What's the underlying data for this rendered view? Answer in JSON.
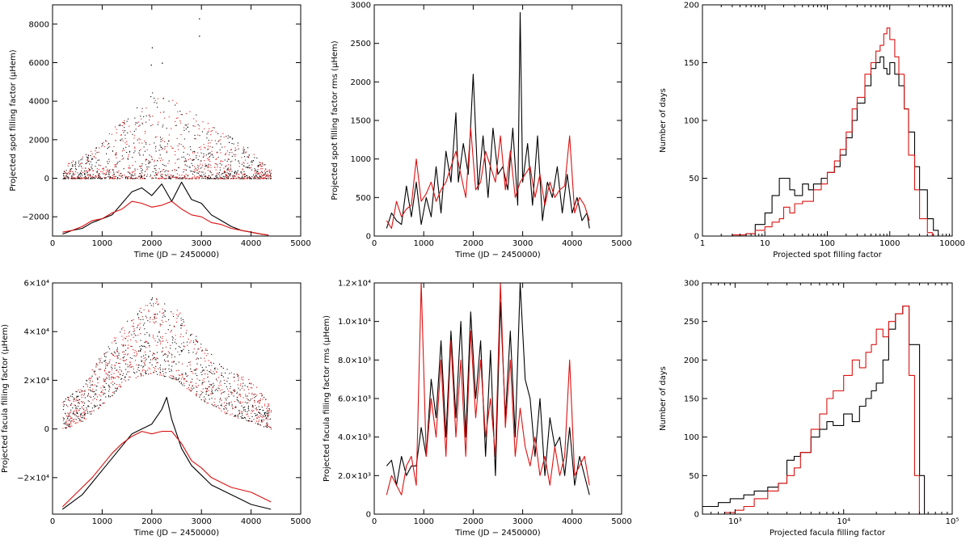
{
  "colors": {
    "series_a": "#000000",
    "series_b": "#dd1111",
    "axis": "#000000"
  },
  "chart_data": [
    {
      "id": "p1",
      "type": "scatter+line",
      "xlabel": "Time (JD − 2450000)",
      "ylabel": "Projected spot filling factor (μHem)",
      "xlim": [
        0,
        5000
      ],
      "ylim": [
        -3000,
        9000
      ],
      "xticks": [
        "0",
        "1000",
        "2000",
        "3000",
        "4000",
        "5000"
      ],
      "yticks": [
        "−2000",
        "0",
        "2000",
        "4000",
        "6000",
        "8000"
      ],
      "scatter_range": [
        200,
        4400
      ],
      "scatter_envelope": {
        "x": [
          200,
          600,
          1000,
          1500,
          2000,
          2500,
          3000,
          3500,
          4000,
          4400
        ],
        "y": [
          700,
          1200,
          2000,
          3400,
          4500,
          4000,
          3200,
          2300,
          1500,
          500
        ]
      },
      "series": [
        {
          "color": "black",
          "x": [
            200,
            400,
            600,
            800,
            1000,
            1200,
            1400,
            1600,
            1800,
            2000,
            2200,
            2400,
            2600,
            2800,
            3000,
            3200,
            3400,
            3600,
            3800,
            4000,
            4200,
            4350
          ],
          "y": [
            -2900,
            -2700,
            -2600,
            -2300,
            -2100,
            -1900,
            -1300,
            -700,
            -500,
            -900,
            -300,
            -1200,
            -200,
            -1100,
            -1300,
            -1900,
            -2200,
            -2500,
            -2700,
            -2800,
            -2900,
            -2950
          ]
        },
        {
          "color": "red",
          "x": [
            200,
            400,
            600,
            800,
            1000,
            1200,
            1400,
            1600,
            1800,
            2000,
            2200,
            2400,
            2600,
            2800,
            3000,
            3200,
            3400,
            3600,
            3800,
            4000,
            4200,
            4350
          ],
          "y": [
            -2800,
            -2700,
            -2500,
            -2200,
            -2100,
            -1800,
            -1600,
            -1200,
            -1300,
            -1500,
            -1400,
            -1200,
            -1600,
            -1900,
            -2000,
            -2300,
            -2400,
            -2600,
            -2700,
            -2800,
            -2900,
            -2950
          ]
        }
      ]
    },
    {
      "id": "p2",
      "type": "line",
      "xlabel": "Time (JD − 2450000)",
      "ylabel": "Projected spot filling factor rms (μHem)",
      "xlim": [
        0,
        5000
      ],
      "ylim": [
        0,
        3000
      ],
      "xticks": [
        "0",
        "1000",
        "2000",
        "3000",
        "4000",
        "5000"
      ],
      "yticks": [
        "0",
        "500",
        "1000",
        "1500",
        "2000",
        "2500",
        "3000"
      ],
      "series": [
        {
          "color": "black",
          "x": [
            250,
            350,
            450,
            550,
            650,
            750,
            850,
            950,
            1050,
            1150,
            1250,
            1350,
            1450,
            1550,
            1650,
            1700,
            1800,
            1900,
            2000,
            2100,
            2200,
            2300,
            2400,
            2500,
            2600,
            2700,
            2800,
            2900,
            2950,
            3000,
            3100,
            3200,
            3300,
            3400,
            3500,
            3600,
            3700,
            3800,
            3900,
            4000,
            4100,
            4200,
            4300,
            4350
          ],
          "y": [
            100,
            300,
            200,
            150,
            650,
            250,
            700,
            150,
            500,
            250,
            900,
            300,
            1100,
            700,
            1600,
            700,
            1200,
            800,
            2100,
            600,
            1300,
            500,
            1400,
            800,
            900,
            600,
            1400,
            400,
            2900,
            700,
            1200,
            400,
            1300,
            200,
            700,
            500,
            900,
            300,
            800,
            300,
            500,
            200,
            300,
            100
          ]
        },
        {
          "color": "red",
          "x": [
            250,
            350,
            450,
            550,
            650,
            750,
            850,
            950,
            1050,
            1150,
            1250,
            1350,
            1450,
            1550,
            1650,
            1750,
            1850,
            1950,
            2050,
            2150,
            2250,
            2350,
            2450,
            2550,
            2650,
            2750,
            2850,
            2950,
            3050,
            3150,
            3250,
            3350,
            3450,
            3550,
            3650,
            3750,
            3850,
            3950,
            4050,
            4150,
            4250,
            4350
          ],
          "y": [
            200,
            100,
            450,
            250,
            350,
            400,
            1000,
            450,
            550,
            700,
            450,
            600,
            700,
            900,
            1100,
            800,
            500,
            1400,
            600,
            700,
            1100,
            900,
            700,
            1300,
            600,
            1100,
            500,
            700,
            800,
            900,
            500,
            800,
            400,
            700,
            500,
            600,
            650,
            1300,
            300,
            500,
            400,
            200
          ]
        }
      ]
    },
    {
      "id": "p3",
      "type": "histogram-step",
      "xlabel": "Projected spot filling factor",
      "ylabel": "Number of days",
      "xscale": "log",
      "xlim": [
        1,
        10000
      ],
      "ylim": [
        0,
        200
      ],
      "xticks": [
        "1",
        "10",
        "100",
        "1000",
        "10000"
      ],
      "yticks": [
        "0",
        "50",
        "100",
        "150",
        "200"
      ],
      "series": [
        {
          "color": "black",
          "x": [
            5,
            7,
            10,
            13,
            17,
            20,
            25,
            30,
            40,
            50,
            60,
            80,
            100,
            130,
            160,
            200,
            250,
            300,
            400,
            500,
            600,
            700,
            800,
            900,
            1000,
            1200,
            1400,
            1700,
            2000,
            2500,
            3000,
            4000,
            5000
          ],
          "y": [
            2,
            10,
            20,
            35,
            50,
            50,
            40,
            35,
            45,
            40,
            45,
            50,
            55,
            60,
            70,
            85,
            100,
            115,
            130,
            145,
            150,
            155,
            145,
            140,
            150,
            140,
            130,
            110,
            90,
            60,
            40,
            15,
            5
          ]
        },
        {
          "color": "red",
          "x": [
            3,
            5,
            7,
            10,
            13,
            17,
            20,
            25,
            30,
            40,
            50,
            60,
            80,
            100,
            130,
            160,
            200,
            250,
            300,
            400,
            500,
            600,
            700,
            800,
            900,
            1000,
            1200,
            1400,
            1700,
            2000,
            2500,
            3000,
            4000
          ],
          "y": [
            1,
            2,
            5,
            8,
            12,
            15,
            25,
            20,
            28,
            30,
            30,
            40,
            45,
            55,
            65,
            75,
            90,
            110,
            120,
            140,
            150,
            160,
            165,
            175,
            180,
            170,
            155,
            140,
            110,
            70,
            40,
            15,
            3
          ]
        }
      ]
    },
    {
      "id": "p4",
      "type": "scatter+line",
      "xlabel": "Time (JD − 2450000)",
      "ylabel": "Projected facula filling factor (μHem)",
      "xlim": [
        0,
        5000
      ],
      "ylim": [
        -35000,
        60000
      ],
      "xticks": [
        "0",
        "1000",
        "2000",
        "3000",
        "4000",
        "5000"
      ],
      "yticks": [
        "−2×10⁴",
        "0",
        "2×10⁴",
        "4×10⁴",
        "6×10⁴"
      ],
      "scatter_range": [
        200,
        4400
      ],
      "scatter_envelope": {
        "x": [
          200,
          600,
          1000,
          1500,
          2000,
          2500,
          3000,
          3500,
          4000,
          4400
        ],
        "y": [
          12000,
          18000,
          32000,
          45000,
          55000,
          50000,
          35000,
          25000,
          20000,
          10000
        ]
      },
      "scatter_floor": {
        "x": [
          200,
          600,
          1000,
          1500,
          2000,
          2500,
          3000,
          3500,
          4000,
          4400
        ],
        "y": [
          0,
          3000,
          10000,
          20000,
          23000,
          20000,
          12000,
          6000,
          3000,
          0
        ]
      },
      "series": [
        {
          "color": "black",
          "x": [
            200,
            400,
            600,
            800,
            1000,
            1200,
            1400,
            1600,
            1800,
            2000,
            2200,
            2300,
            2400,
            2600,
            2800,
            3000,
            3200,
            3400,
            3600,
            3800,
            4000,
            4200,
            4400
          ],
          "y": [
            -33000,
            -30000,
            -27000,
            -22000,
            -17000,
            -12000,
            -7000,
            -2000,
            0,
            2000,
            8000,
            13000,
            4000,
            -8000,
            -15000,
            -19000,
            -23000,
            -25000,
            -27000,
            -29000,
            -31000,
            -32000,
            -33000
          ]
        },
        {
          "color": "red",
          "x": [
            200,
            400,
            600,
            800,
            1000,
            1200,
            1400,
            1600,
            1800,
            2000,
            2200,
            2400,
            2600,
            2800,
            3000,
            3200,
            3400,
            3600,
            3800,
            4000,
            4200,
            4400
          ],
          "y": [
            -32000,
            -28000,
            -24000,
            -20000,
            -15000,
            -10000,
            -6000,
            -3000,
            -1000,
            -2000,
            -1000,
            -1000,
            -6000,
            -13000,
            -16000,
            -20000,
            -22000,
            -24000,
            -25000,
            -26000,
            -28000,
            -30000
          ]
        }
      ]
    },
    {
      "id": "p5",
      "type": "line",
      "xlabel": "Time (JD − 2450000)",
      "ylabel": "Projected facula filling factor rms (μHem)",
      "xlim": [
        0,
        5000
      ],
      "ylim": [
        0,
        12000
      ],
      "xticks": [
        "0",
        "1000",
        "2000",
        "3000",
        "4000",
        "5000"
      ],
      "yticks": [
        "0",
        "2.0×10³",
        "4.0×10³",
        "6.0×10³",
        "8.0×10³",
        "1.0×10⁴",
        "1.2×10⁴"
      ],
      "series": [
        {
          "color": "black",
          "x": [
            250,
            350,
            450,
            550,
            650,
            750,
            850,
            950,
            1050,
            1150,
            1250,
            1350,
            1450,
            1550,
            1650,
            1750,
            1850,
            1950,
            2050,
            2150,
            2250,
            2350,
            2450,
            2550,
            2650,
            2750,
            2850,
            2950,
            3050,
            3150,
            3250,
            3350,
            3450,
            3550,
            3650,
            3750,
            3850,
            3950,
            4050,
            4150,
            4250,
            4350
          ],
          "y": [
            2500,
            2800,
            1500,
            3000,
            2000,
            2500,
            2500,
            4500,
            3000,
            7000,
            5000,
            9000,
            4000,
            9500,
            5000,
            10000,
            4000,
            10500,
            6000,
            9000,
            3000,
            8500,
            2000,
            11000,
            5000,
            9500,
            4000,
            12000,
            7000,
            6000,
            3000,
            6000,
            2000,
            5000,
            3500,
            4000,
            2000,
            4500,
            1500,
            3000,
            2000,
            1000
          ]
        },
        {
          "color": "red",
          "x": [
            250,
            350,
            450,
            550,
            650,
            750,
            850,
            950,
            1050,
            1150,
            1250,
            1350,
            1450,
            1550,
            1650,
            1750,
            1850,
            1950,
            2050,
            2150,
            2250,
            2350,
            2450,
            2550,
            2650,
            2750,
            2850,
            2950,
            3050,
            3150,
            3250,
            3350,
            3450,
            3550,
            3650,
            3750,
            3850,
            3950,
            4050,
            4150,
            4250,
            4350
          ],
          "y": [
            1000,
            2000,
            1500,
            1000,
            2500,
            3000,
            1500,
            12000,
            3000,
            6000,
            4000,
            8000,
            3000,
            9000,
            4000,
            8000,
            3000,
            9500,
            5000,
            8000,
            4000,
            6000,
            3000,
            12000,
            4500,
            8000,
            3000,
            5500,
            3500,
            2500,
            4000,
            2000,
            3000,
            1500,
            3500,
            2000,
            3000,
            8000,
            2000,
            2500,
            3000,
            1500
          ]
        }
      ]
    },
    {
      "id": "p6",
      "type": "histogram-step",
      "xlabel": "Projected facula filling factor",
      "ylabel": "Number of days",
      "xscale": "log",
      "xlim": [
        500,
        100000
      ],
      "ylim": [
        0,
        300
      ],
      "xticks": [
        "10³",
        "10⁴",
        "10⁵"
      ],
      "yticks": [
        "0",
        "50",
        "100",
        "150",
        "200",
        "250",
        "300"
      ],
      "series": [
        {
          "color": "black",
          "x": [
            500,
            700,
            900,
            1200,
            1500,
            2000,
            2500,
            3000,
            3500,
            4000,
            5000,
            6000,
            7000,
            8000,
            10000,
            12000,
            14000,
            16000,
            18000,
            20000,
            23000,
            26000,
            30000,
            35000,
            40000,
            50000
          ],
          "y": [
            10,
            15,
            20,
            25,
            30,
            35,
            40,
            70,
            75,
            80,
            100,
            110,
            120,
            115,
            130,
            120,
            140,
            150,
            160,
            170,
            200,
            240,
            260,
            270,
            220,
            50
          ]
        },
        {
          "color": "red",
          "x": [
            800,
            1000,
            1200,
            1500,
            2000,
            2500,
            3000,
            3500,
            4000,
            5000,
            6000,
            7000,
            8000,
            10000,
            12000,
            14000,
            16000,
            18000,
            20000,
            23000,
            26000,
            30000,
            35000,
            40000,
            45000
          ],
          "y": [
            2,
            5,
            10,
            20,
            30,
            40,
            50,
            60,
            80,
            110,
            130,
            150,
            160,
            180,
            200,
            190,
            210,
            220,
            240,
            230,
            250,
            260,
            270,
            180,
            50
          ]
        }
      ]
    }
  ]
}
